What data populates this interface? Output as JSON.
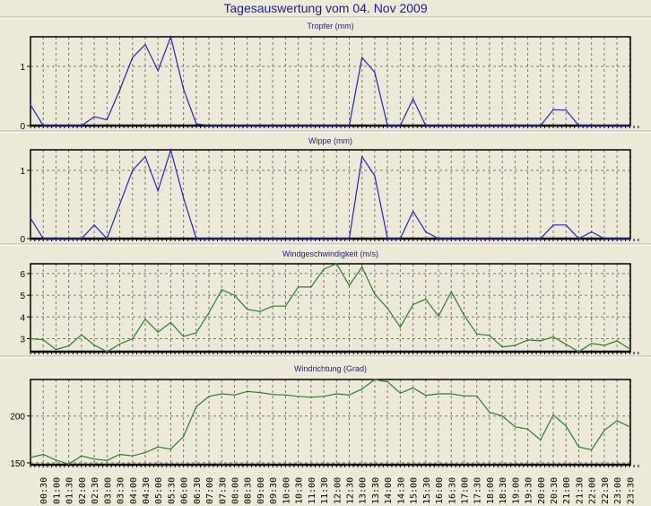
{
  "title": "Tagesauswertung vom 04. Nov 2009",
  "colors": {
    "blue_series": "#2323c8",
    "green_series": "#2e7d2e",
    "title": "#1a1aa8",
    "background": "#ECE9D8"
  },
  "chart_data": [
    {
      "type": "line",
      "title": "Tropfer (mm)",
      "ylim": [
        0,
        1.5
      ],
      "yticks": [
        "0",
        "1"
      ],
      "color": "#2323c8",
      "values": [
        0.35,
        0,
        0,
        0,
        0,
        0.15,
        0.1,
        0.6,
        1.15,
        1.37,
        0.93,
        1.5,
        0.62,
        0.03,
        0,
        0,
        0,
        0,
        0,
        0,
        0,
        0,
        0,
        0,
        0,
        0,
        1.15,
        0.9,
        0,
        0,
        0.45,
        0,
        0,
        0,
        0,
        0,
        0,
        0,
        0,
        0,
        0,
        0.27,
        0.26,
        0,
        0,
        0,
        0,
        0
      ]
    },
    {
      "type": "line",
      "title": "Wippe (mm)",
      "ylim": [
        0,
        1.3
      ],
      "yticks": [
        "0",
        "1"
      ],
      "color": "#2323c8",
      "values": [
        0.3,
        0,
        0,
        0,
        0,
        0.2,
        0,
        0.5,
        1.0,
        1.2,
        0.7,
        1.3,
        0.6,
        0,
        0,
        0,
        0,
        0,
        0,
        0,
        0,
        0,
        0,
        0,
        0,
        0,
        1.2,
        0.92,
        0,
        0,
        0.4,
        0.1,
        0,
        0,
        0,
        0,
        0,
        0,
        0,
        0,
        0,
        0.2,
        0.2,
        0,
        0.1,
        0,
        0,
        0
      ]
    },
    {
      "type": "line",
      "title": "Windgeschwindigkeit (m/s)",
      "ylim": [
        2.4,
        6.45
      ],
      "yticks": [
        "3",
        "4",
        "5",
        "6"
      ],
      "color": "#2e7d2e",
      "values": [
        3.0,
        2.95,
        2.5,
        2.67,
        3.18,
        2.7,
        2.4,
        2.75,
        3.0,
        3.9,
        3.3,
        3.75,
        3.1,
        3.27,
        4.2,
        5.25,
        5.0,
        4.35,
        4.25,
        4.5,
        4.5,
        5.38,
        5.38,
        6.2,
        6.45,
        5.45,
        6.3,
        5.05,
        4.4,
        3.53,
        4.57,
        4.82,
        4.03,
        5.17,
        4.08,
        3.22,
        3.15,
        2.62,
        2.69,
        2.94,
        2.9,
        3.08,
        2.74,
        2.4,
        2.78,
        2.69,
        2.9,
        2.53
      ]
    },
    {
      "type": "line",
      "title": "Windrichtung (Grad)",
      "ylim": [
        148,
        239
      ],
      "yticks": [
        "150",
        "200"
      ],
      "color": "#2e7d2e",
      "values": [
        155.8,
        159,
        153,
        148.7,
        157.4,
        154,
        152.6,
        159,
        157.4,
        161,
        167,
        164.7,
        178,
        210,
        221,
        223.7,
        222.4,
        226.3,
        225,
        223,
        222.4,
        221,
        220,
        221,
        223.7,
        222.4,
        228.8,
        239,
        236.5,
        224.4,
        230,
        222,
        223.7,
        223.7,
        221.5,
        221.5,
        204,
        200,
        188.5,
        186,
        174.4,
        201.3,
        189.4,
        167,
        164,
        184.6,
        195,
        188.5
      ]
    }
  ],
  "x_labels": [
    "00:30",
    "01:00",
    "01:30",
    "02:00",
    "02:30",
    "03:00",
    "03:30",
    "04:00",
    "04:30",
    "05:00",
    "05:30",
    "06:00",
    "06:30",
    "07:00",
    "07:30",
    "08:00",
    "08:30",
    "09:00",
    "09:30",
    "10:00",
    "10:30",
    "11:00",
    "11:30",
    "12:00",
    "12:30",
    "13:00",
    "13:30",
    "14:00",
    "14:30",
    "15:00",
    "15:30",
    "16:00",
    "16:30",
    "17:00",
    "17:30",
    "18:00",
    "18:30",
    "19:00",
    "19:30",
    "20:00",
    "20:30",
    "21:00",
    "21:30",
    "22:00",
    "22:30",
    "23:00",
    "23:30"
  ]
}
